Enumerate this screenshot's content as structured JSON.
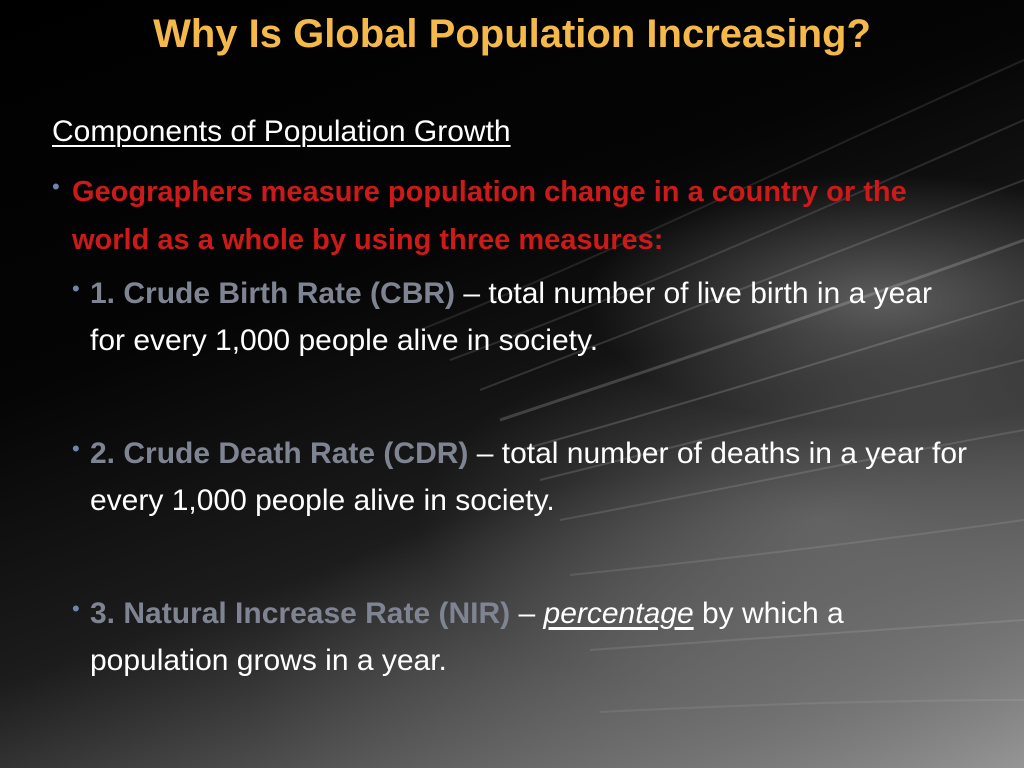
{
  "slide": {
    "title": "Why Is Global Population Increasing?",
    "subtitle": "Components of Population Growth",
    "intro_bullet": "Geographers measure population change in a country or the world as a whole by using three measures:",
    "measures": [
      {
        "term": "1. Crude Birth Rate (CBR)",
        "dash": " – ",
        "emphasis": "",
        "definition": "total number of live birth in a year for every 1,000 people alive in society."
      },
      {
        "term": "2. Crude Death Rate (CDR)",
        "dash": " – ",
        "emphasis": "",
        "definition": "total number of deaths in a year for every 1,000 people alive in society."
      },
      {
        "term": "3. Natural Increase Rate (NIR)",
        "dash": " – ",
        "emphasis": "percentage",
        "definition": " by which a population grows in a year."
      }
    ],
    "bullet_glyph": "•"
  },
  "colors": {
    "title": "#f5b94b",
    "intro": "#cc1a1a",
    "term": "#7e8491",
    "body": "#ffffff",
    "bullet": "#6f85ad"
  }
}
